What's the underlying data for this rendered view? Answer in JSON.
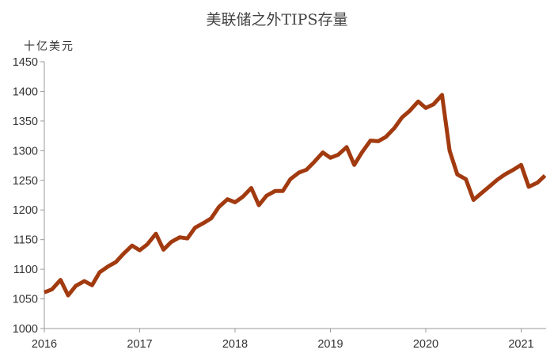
{
  "chart_data": {
    "type": "line",
    "title": "美联储之外TIPS存量",
    "ylabel": "十亿美元",
    "xlabel": "",
    "ylim": [
      1000,
      1450
    ],
    "yticks": [
      1000,
      1050,
      1100,
      1150,
      1200,
      1250,
      1300,
      1350,
      1400,
      1450
    ],
    "xticks": [
      "2016",
      "2017",
      "2018",
      "2019",
      "2020",
      "2021"
    ],
    "xlim": [
      2016.0,
      2021.25
    ],
    "grid": false,
    "legend": "none",
    "line_color": "#A23A0F",
    "series": [
      {
        "x": [
          2016.0,
          2016.08,
          2016.17,
          2016.25,
          2016.33,
          2016.42,
          2016.5,
          2016.58,
          2016.67,
          2016.75,
          2016.83,
          2016.92,
          2017.0,
          2017.08,
          2017.17,
          2017.25,
          2017.33,
          2017.42,
          2017.5,
          2017.58,
          2017.67,
          2017.75,
          2017.83,
          2017.92,
          2018.0,
          2018.08,
          2018.17,
          2018.25,
          2018.33,
          2018.42,
          2018.5,
          2018.58,
          2018.67,
          2018.75,
          2018.83,
          2018.92,
          2019.0,
          2019.08,
          2019.17,
          2019.25,
          2019.33,
          2019.42,
          2019.5,
          2019.58,
          2019.67,
          2019.75,
          2019.83,
          2019.92,
          2020.0,
          2020.08,
          2020.17,
          2020.25,
          2020.33,
          2020.42,
          2020.5,
          2020.58,
          2020.67,
          2020.75,
          2020.83,
          2020.92,
          2021.0,
          2021.08,
          2021.17,
          2021.25
        ],
        "values": [
          1061,
          1066,
          1082,
          1056,
          1072,
          1080,
          1073,
          1095,
          1105,
          1112,
          1126,
          1140,
          1132,
          1142,
          1160,
          1133,
          1146,
          1154,
          1152,
          1170,
          1178,
          1186,
          1205,
          1218,
          1213,
          1222,
          1237,
          1208,
          1224,
          1232,
          1232,
          1252,
          1263,
          1268,
          1281,
          1297,
          1288,
          1293,
          1306,
          1276,
          1297,
          1317,
          1316,
          1323,
          1338,
          1356,
          1367,
          1383,
          1372,
          1378,
          1394,
          1300,
          1260,
          1252,
          1217,
          1228,
          1240,
          1251,
          1260,
          1268,
          1276,
          1239,
          1246,
          1258
        ]
      }
    ]
  }
}
